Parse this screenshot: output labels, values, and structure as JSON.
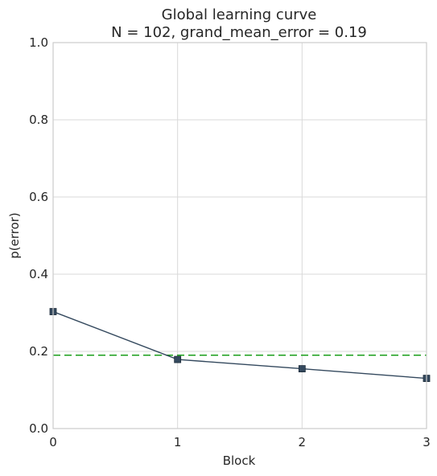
{
  "chart_data": {
    "type": "line",
    "title": "Global learning curve",
    "subtitle": "N = 102, grand_mean_error = 0.19",
    "xlabel": "Block",
    "ylabel": "p(error)",
    "xlim": [
      0,
      3
    ],
    "ylim": [
      0.0,
      1.0
    ],
    "x_ticks": [
      0,
      1,
      2,
      3
    ],
    "y_ticks": [
      0.0,
      0.2,
      0.4,
      0.6,
      0.8,
      1.0
    ],
    "x_tick_labels": [
      "0",
      "1",
      "2",
      "3"
    ],
    "y_tick_labels": [
      "0.0",
      "0.2",
      "0.4",
      "0.6",
      "0.8",
      "1.0"
    ],
    "grid": true,
    "series": [
      {
        "x": [
          0,
          1,
          2,
          3
        ],
        "values": [
          0.303,
          0.179,
          0.155,
          0.13
        ],
        "color": "#34495e",
        "marker": "square"
      }
    ],
    "reference_lines": [
      {
        "axis": "y",
        "value": 0.19,
        "color": "#1a9e1a",
        "style": "dashed"
      }
    ]
  }
}
